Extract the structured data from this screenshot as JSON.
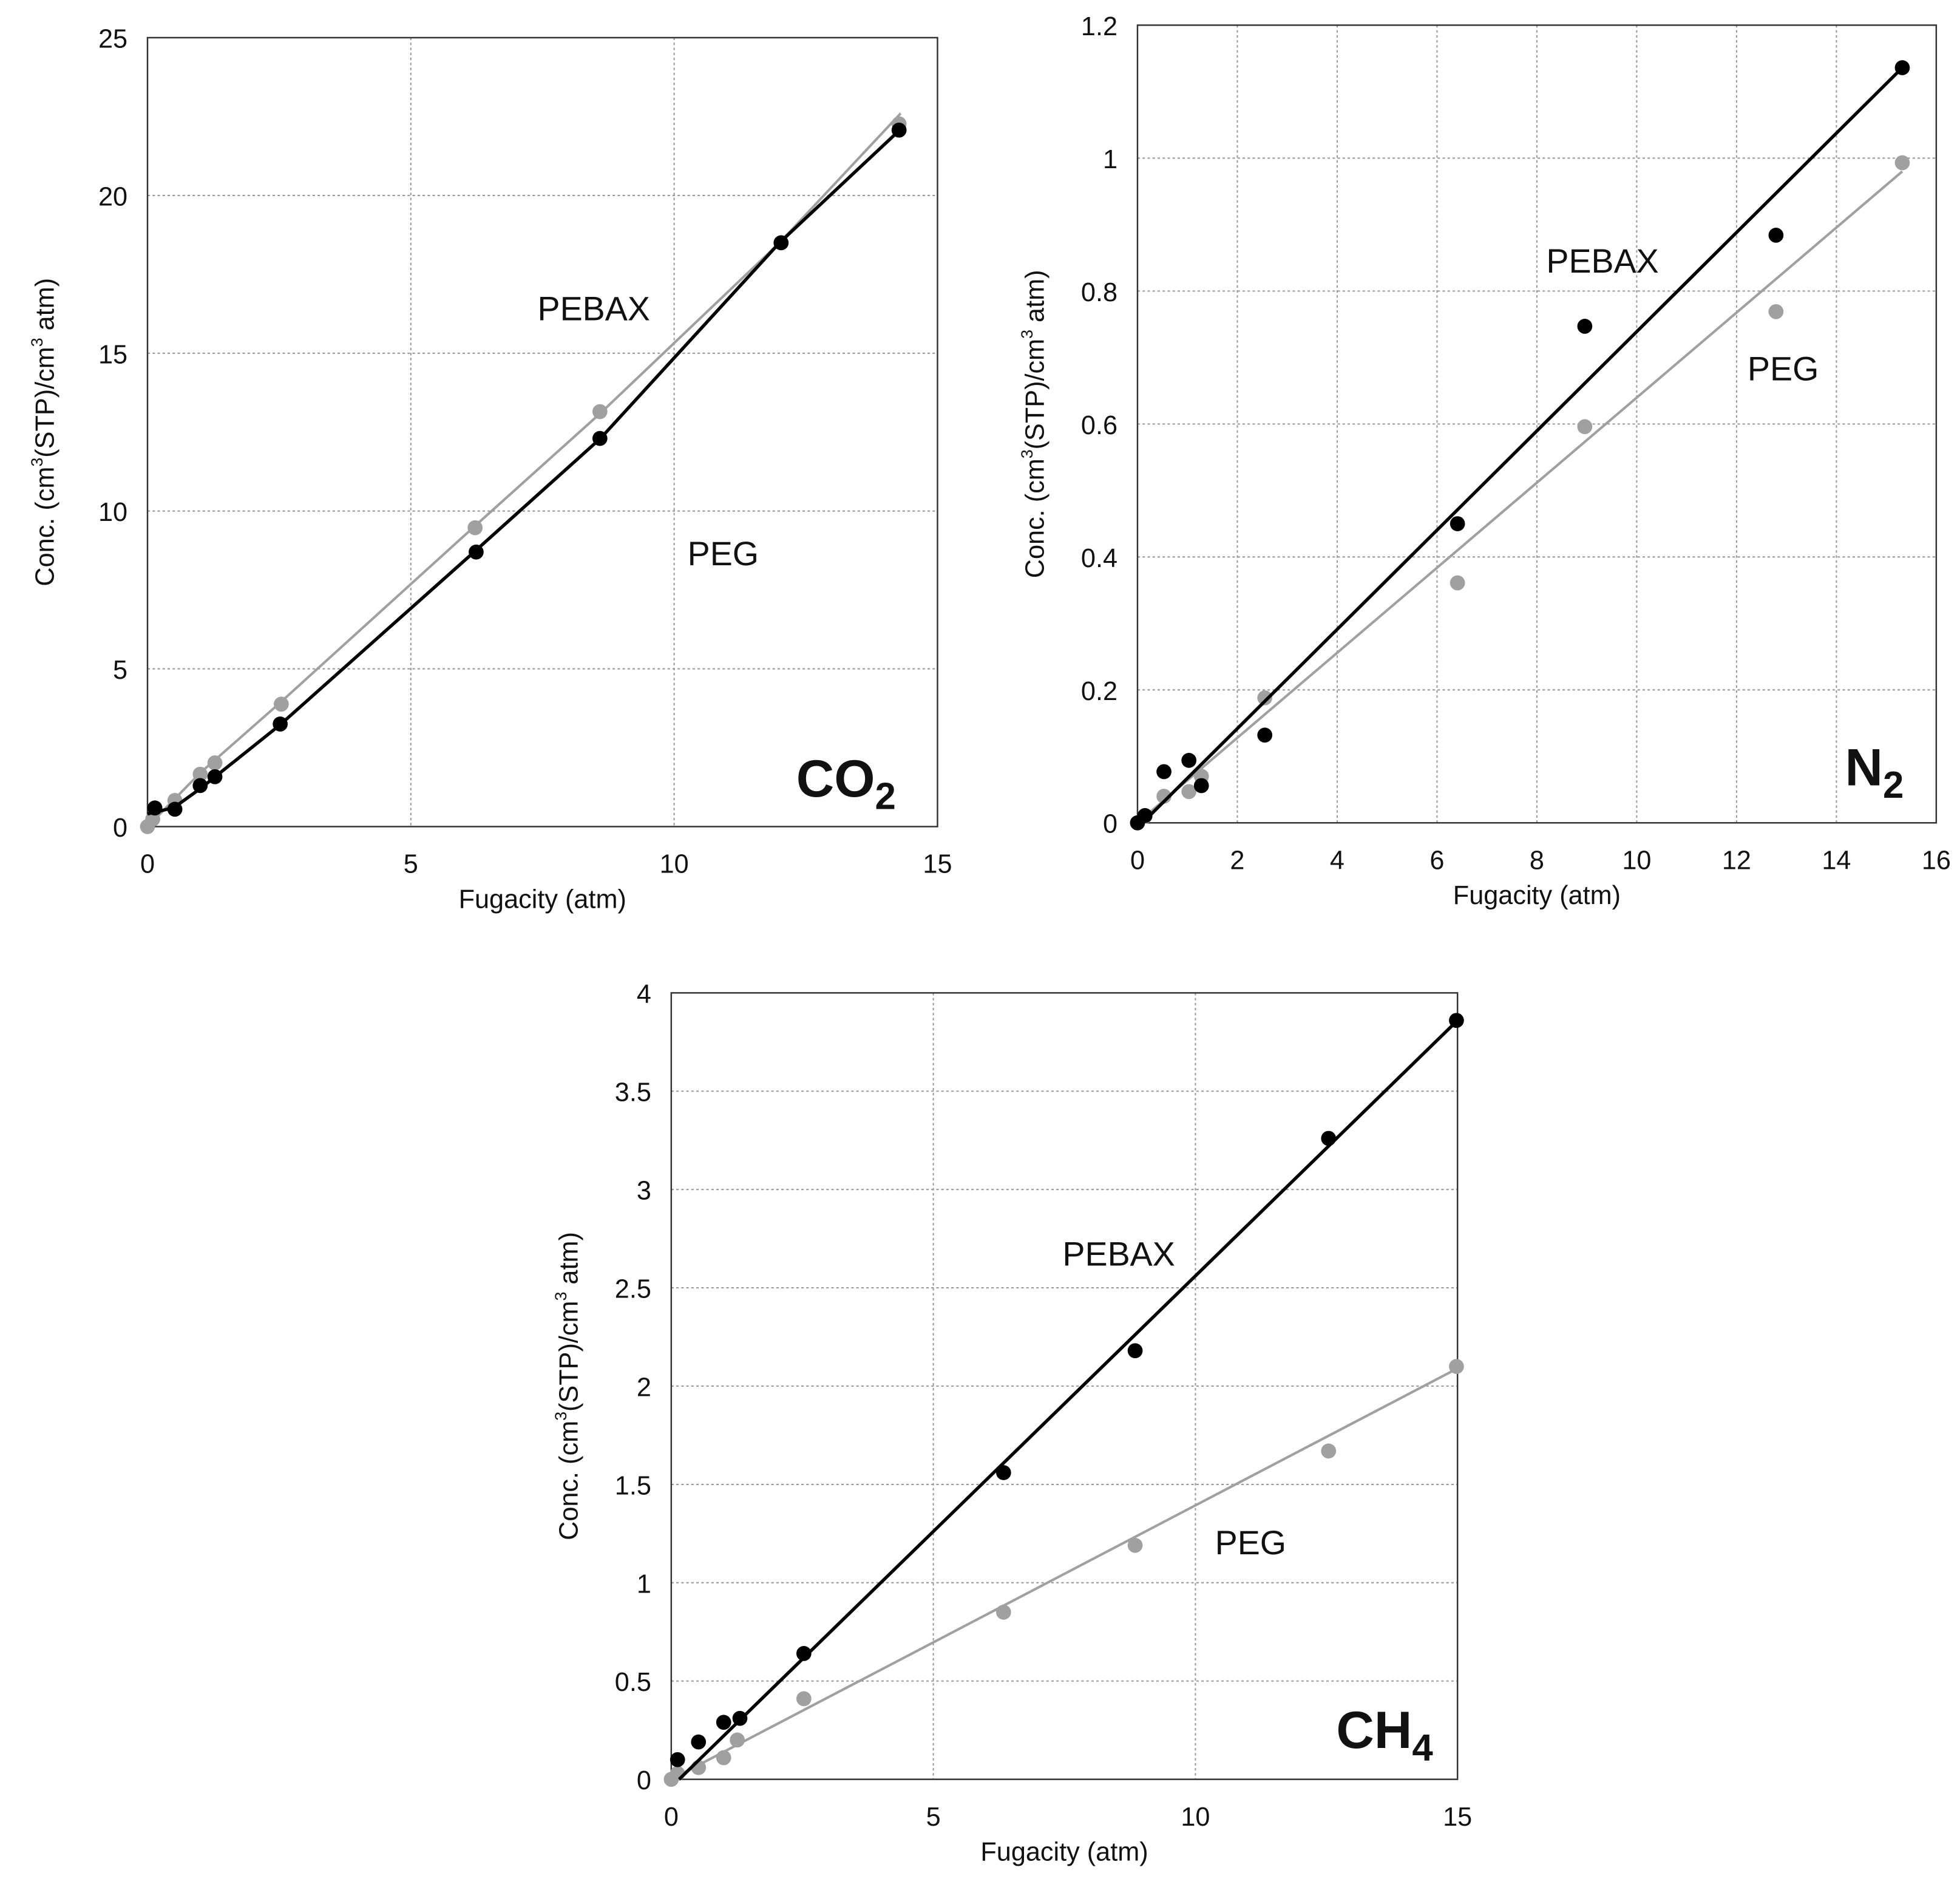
{
  "colors": {
    "pebax": "#000000",
    "peg": "#a0a0a0",
    "grid": "#9a9a9a",
    "frame": "#333333"
  },
  "chart_data": [
    {
      "type": "scatter",
      "gas_label": {
        "main": "CO",
        "sub": "2"
      },
      "xlabel": "Fugacity (atm)",
      "ylabel": {
        "a": "Conc. (cm",
        "sup1": "3",
        "b": "(STP)/cm",
        "sup2": "3",
        "c": " atm)"
      },
      "xlim": [
        0,
        15
      ],
      "ylim": [
        0,
        25
      ],
      "xticks": [
        "0",
        "5",
        "10",
        "15"
      ],
      "yticks": [
        "0",
        "5",
        "10",
        "15",
        "20",
        "25"
      ],
      "grid": true,
      "series": [
        {
          "name": "PEBAX",
          "color": "#000000",
          "x": [
            0.14,
            0.52,
            1.0,
            1.28,
            2.52,
            6.24,
            8.59,
            12.03,
            14.27
          ],
          "y": [
            0.59,
            0.55,
            1.3,
            1.58,
            3.25,
            8.7,
            12.3,
            18.5,
            22.07
          ],
          "fit": [
            [
              0,
              0.4
            ],
            [
              0.5,
              0.6
            ],
            [
              1,
              1.2
            ],
            [
              2.5,
              3.2
            ],
            [
              6.2,
              8.7
            ],
            [
              8.6,
              12.3
            ],
            [
              12,
              18.5
            ],
            [
              14.3,
              22.1
            ]
          ]
        },
        {
          "name": "PEG",
          "color": "#a0a0a0",
          "x": [
            0,
            0.1,
            0.52,
            1.0,
            1.28,
            2.54,
            6.22,
            8.59,
            12.03,
            14.27
          ],
          "y": [
            0,
            0.24,
            0.83,
            1.66,
            2.02,
            3.88,
            9.47,
            13.15,
            18.5,
            22.27
          ],
          "fit": [
            [
              0,
              0
            ],
            [
              1,
              1.7
            ],
            [
              2.5,
              3.9
            ],
            [
              6.2,
              9.5
            ],
            [
              8.6,
              13.1
            ],
            [
              12,
              18.5
            ],
            [
              14.3,
              22.6
            ]
          ]
        }
      ]
    },
    {
      "type": "scatter",
      "gas_label": {
        "main": "N",
        "sub": "2"
      },
      "xlabel": "Fugacity (atm)",
      "ylabel": {
        "a": "Conc. (cm",
        "sup1": "3",
        "b": "(STP)/cm",
        "sup2": "3",
        "c": " atm)"
      },
      "xlim": [
        0,
        16
      ],
      "ylim": [
        0,
        1.2
      ],
      "xticks": [
        "0",
        "2",
        "4",
        "6",
        "8",
        "10",
        "12",
        "14",
        "16"
      ],
      "yticks": [
        "0",
        "0.2",
        "0.4",
        "0.6",
        "0.8",
        "1",
        "1.2"
      ],
      "grid": true,
      "series": [
        {
          "name": "PEBAX",
          "color": "#000000",
          "x": [
            0,
            0.15,
            0.53,
            1.03,
            1.28,
            2.55,
            6.41,
            8.96,
            12.79,
            15.32
          ],
          "y": [
            0,
            0.011,
            0.077,
            0.094,
            0.056,
            0.132,
            0.45,
            0.747,
            0.884,
            1.136
          ],
          "fit": [
            [
              0.1,
              0
            ],
            [
              15.32,
              1.136
            ]
          ]
        },
        {
          "name": "PEG",
          "color": "#a0a0a0",
          "x": [
            0,
            0.15,
            0.53,
            1.03,
            1.28,
            2.55,
            6.41,
            8.96,
            12.79,
            15.32
          ],
          "y": [
            0,
            0.01,
            0.04,
            0.047,
            0.07,
            0.188,
            0.361,
            0.596,
            0.769,
            0.993
          ],
          "fit": [
            [
              0,
              0
            ],
            [
              15.32,
              0.98
            ]
          ]
        }
      ]
    },
    {
      "type": "scatter",
      "gas_label": {
        "main": "CH",
        "sub": "4"
      },
      "xlabel": "Fugacity (atm)",
      "ylabel": {
        "a": "Conc. (cm",
        "sup1": "3",
        "b": "(STP)/cm",
        "sup2": "3",
        "c": " atm)"
      },
      "xlim": [
        0,
        15
      ],
      "ylim": [
        0,
        4
      ],
      "xticks": [
        "0",
        "5",
        "10",
        "15"
      ],
      "yticks": [
        "0",
        "0.5",
        "1",
        "1.5",
        "2",
        "2.5",
        "3",
        "3.5",
        "4"
      ],
      "grid": true,
      "series": [
        {
          "name": "PEBAX",
          "color": "#000000",
          "x": [
            0.12,
            0.52,
            1.0,
            1.31,
            2.53,
            6.34,
            8.85,
            12.54,
            14.98
          ],
          "y": [
            0.1,
            0.19,
            0.29,
            0.31,
            0.64,
            1.56,
            2.18,
            3.26,
            3.86
          ],
          "fit": [
            [
              0.15,
              0
            ],
            [
              15,
              3.86
            ]
          ]
        },
        {
          "name": "PEG",
          "color": "#a0a0a0",
          "x": [
            0,
            0.12,
            0.52,
            1.0,
            1.26,
            2.53,
            6.34,
            8.85,
            12.54,
            14.98
          ],
          "y": [
            0,
            0.03,
            0.06,
            0.11,
            0.2,
            0.41,
            0.85,
            1.19,
            1.67,
            2.1
          ],
          "fit": [
            [
              0,
              0
            ],
            [
              15,
              2.09
            ]
          ]
        }
      ]
    }
  ]
}
